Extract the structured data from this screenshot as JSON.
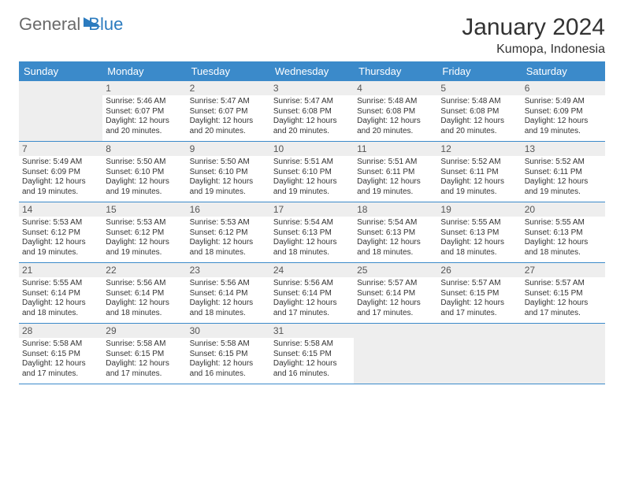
{
  "logo": {
    "text1": "General",
    "text2": "Blue"
  },
  "title": "January 2024",
  "location": "Kumopa, Indonesia",
  "colors": {
    "header_bg": "#3b8aca",
    "header_fg": "#ffffff",
    "daynum_bg": "#eeeeee",
    "rule": "#3b8aca",
    "logo_gray": "#6a6a6a",
    "logo_blue": "#2b7bbf"
  },
  "dayHeaders": [
    "Sunday",
    "Monday",
    "Tuesday",
    "Wednesday",
    "Thursday",
    "Friday",
    "Saturday"
  ],
  "weeks": [
    [
      {
        "blank": true
      },
      {
        "n": "1",
        "sunrise": "5:46 AM",
        "sunset": "6:07 PM",
        "daylight": "12 hours and 20 minutes."
      },
      {
        "n": "2",
        "sunrise": "5:47 AM",
        "sunset": "6:07 PM",
        "daylight": "12 hours and 20 minutes."
      },
      {
        "n": "3",
        "sunrise": "5:47 AM",
        "sunset": "6:08 PM",
        "daylight": "12 hours and 20 minutes."
      },
      {
        "n": "4",
        "sunrise": "5:48 AM",
        "sunset": "6:08 PM",
        "daylight": "12 hours and 20 minutes."
      },
      {
        "n": "5",
        "sunrise": "5:48 AM",
        "sunset": "6:08 PM",
        "daylight": "12 hours and 20 minutes."
      },
      {
        "n": "6",
        "sunrise": "5:49 AM",
        "sunset": "6:09 PM",
        "daylight": "12 hours and 19 minutes."
      }
    ],
    [
      {
        "n": "7",
        "sunrise": "5:49 AM",
        "sunset": "6:09 PM",
        "daylight": "12 hours and 19 minutes."
      },
      {
        "n": "8",
        "sunrise": "5:50 AM",
        "sunset": "6:10 PM",
        "daylight": "12 hours and 19 minutes."
      },
      {
        "n": "9",
        "sunrise": "5:50 AM",
        "sunset": "6:10 PM",
        "daylight": "12 hours and 19 minutes."
      },
      {
        "n": "10",
        "sunrise": "5:51 AM",
        "sunset": "6:10 PM",
        "daylight": "12 hours and 19 minutes."
      },
      {
        "n": "11",
        "sunrise": "5:51 AM",
        "sunset": "6:11 PM",
        "daylight": "12 hours and 19 minutes."
      },
      {
        "n": "12",
        "sunrise": "5:52 AM",
        "sunset": "6:11 PM",
        "daylight": "12 hours and 19 minutes."
      },
      {
        "n": "13",
        "sunrise": "5:52 AM",
        "sunset": "6:11 PM",
        "daylight": "12 hours and 19 minutes."
      }
    ],
    [
      {
        "n": "14",
        "sunrise": "5:53 AM",
        "sunset": "6:12 PM",
        "daylight": "12 hours and 19 minutes."
      },
      {
        "n": "15",
        "sunrise": "5:53 AM",
        "sunset": "6:12 PM",
        "daylight": "12 hours and 19 minutes."
      },
      {
        "n": "16",
        "sunrise": "5:53 AM",
        "sunset": "6:12 PM",
        "daylight": "12 hours and 18 minutes."
      },
      {
        "n": "17",
        "sunrise": "5:54 AM",
        "sunset": "6:13 PM",
        "daylight": "12 hours and 18 minutes."
      },
      {
        "n": "18",
        "sunrise": "5:54 AM",
        "sunset": "6:13 PM",
        "daylight": "12 hours and 18 minutes."
      },
      {
        "n": "19",
        "sunrise": "5:55 AM",
        "sunset": "6:13 PM",
        "daylight": "12 hours and 18 minutes."
      },
      {
        "n": "20",
        "sunrise": "5:55 AM",
        "sunset": "6:13 PM",
        "daylight": "12 hours and 18 minutes."
      }
    ],
    [
      {
        "n": "21",
        "sunrise": "5:55 AM",
        "sunset": "6:14 PM",
        "daylight": "12 hours and 18 minutes."
      },
      {
        "n": "22",
        "sunrise": "5:56 AM",
        "sunset": "6:14 PM",
        "daylight": "12 hours and 18 minutes."
      },
      {
        "n": "23",
        "sunrise": "5:56 AM",
        "sunset": "6:14 PM",
        "daylight": "12 hours and 18 minutes."
      },
      {
        "n": "24",
        "sunrise": "5:56 AM",
        "sunset": "6:14 PM",
        "daylight": "12 hours and 17 minutes."
      },
      {
        "n": "25",
        "sunrise": "5:57 AM",
        "sunset": "6:14 PM",
        "daylight": "12 hours and 17 minutes."
      },
      {
        "n": "26",
        "sunrise": "5:57 AM",
        "sunset": "6:15 PM",
        "daylight": "12 hours and 17 minutes."
      },
      {
        "n": "27",
        "sunrise": "5:57 AM",
        "sunset": "6:15 PM",
        "daylight": "12 hours and 17 minutes."
      }
    ],
    [
      {
        "n": "28",
        "sunrise": "5:58 AM",
        "sunset": "6:15 PM",
        "daylight": "12 hours and 17 minutes."
      },
      {
        "n": "29",
        "sunrise": "5:58 AM",
        "sunset": "6:15 PM",
        "daylight": "12 hours and 17 minutes."
      },
      {
        "n": "30",
        "sunrise": "5:58 AM",
        "sunset": "6:15 PM",
        "daylight": "12 hours and 16 minutes."
      },
      {
        "n": "31",
        "sunrise": "5:58 AM",
        "sunset": "6:15 PM",
        "daylight": "12 hours and 16 minutes."
      },
      {
        "blank": true
      },
      {
        "blank": true
      },
      {
        "blank": true
      }
    ]
  ],
  "labels": {
    "sunrise": "Sunrise:",
    "sunset": "Sunset:",
    "daylight": "Daylight:"
  }
}
